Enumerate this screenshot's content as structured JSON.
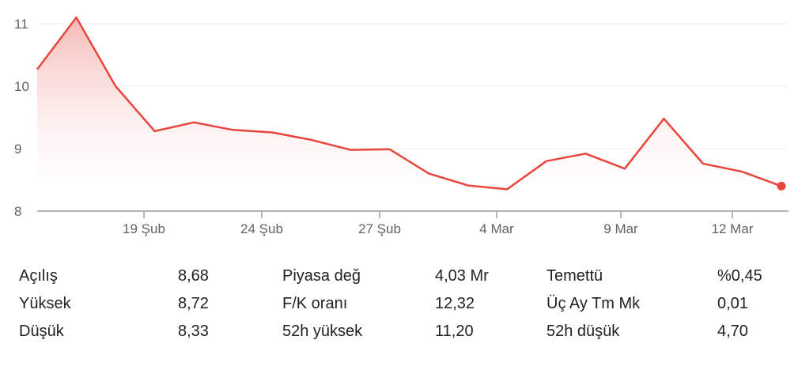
{
  "chart_data": {
    "type": "area",
    "x_ticks": [
      "19 Şub",
      "24 Şub",
      "27 Şub",
      "4 Mar",
      "9 Mar",
      "12 Mar"
    ],
    "y_ticks": [
      "8",
      "9",
      "10",
      "11"
    ],
    "ylim": [
      8,
      11.15
    ],
    "grid": true,
    "legend": "none",
    "series": [
      {
        "values": [
          10.27,
          11.1,
          10.0,
          9.28,
          9.42,
          9.3,
          9.26,
          9.14,
          8.98,
          8.99,
          8.6,
          8.41,
          8.35,
          8.8,
          8.92,
          8.68,
          9.48,
          8.76,
          8.63,
          8.4
        ]
      }
    ],
    "colors": {
      "line": "#e8453c",
      "fill_top": "#f4b5b0",
      "grid": "#eeeeee",
      "axis": "#9e9e9e"
    }
  },
  "stats": {
    "col1": [
      {
        "label": "Açılış",
        "value": "8,68"
      },
      {
        "label": "Yüksek",
        "value": "8,72"
      },
      {
        "label": "Düşük",
        "value": "8,33"
      }
    ],
    "col2": [
      {
        "label": "Piyasa değ",
        "value": "4,03 Mr"
      },
      {
        "label": "F/K oranı",
        "value": "12,32"
      },
      {
        "label": "52h yüksek",
        "value": "11,20"
      }
    ],
    "col3": [
      {
        "label": "Temettü",
        "value": "%0,45"
      },
      {
        "label": "Üç Ay Tm Mk",
        "value": "0,01"
      },
      {
        "label": "52h düşük",
        "value": "4,70"
      }
    ]
  }
}
